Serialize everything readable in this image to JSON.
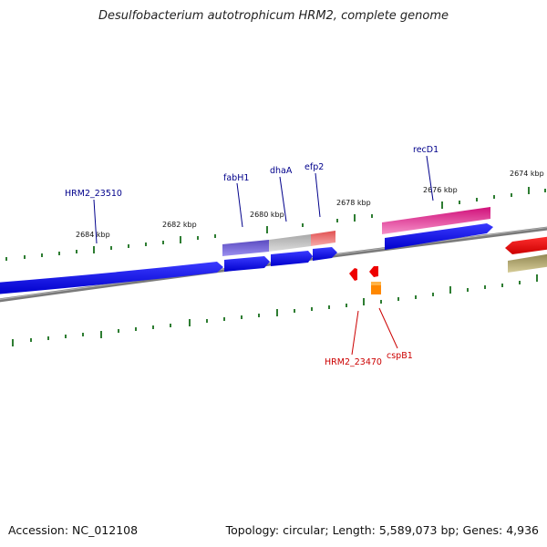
{
  "title": "Desulfobacterium autotrophicum HRM2, complete genome",
  "footer": {
    "accession": "Accession: NC_012108",
    "summary": "Topology: circular; Length: 5,589,073 bp; Genes: 4,936"
  },
  "ruler": {
    "labels": [
      "2684 kbp",
      "2682 kbp",
      "2680 kbp",
      "2678 kbp",
      "2676 kbp",
      "2674 kbp"
    ]
  },
  "gene_labels": [
    {
      "id": "HRM2_23510",
      "text": "HRM2_23510",
      "color": "#00008b"
    },
    {
      "id": "fabH1",
      "text": "fabH1",
      "color": "#00008b"
    },
    {
      "id": "dhaA",
      "text": "dhaA",
      "color": "#00008b"
    },
    {
      "id": "efp2",
      "text": "efp2",
      "color": "#00008b"
    },
    {
      "id": "recD1",
      "text": "recD1",
      "color": "#00008b"
    },
    {
      "id": "HRM2_23470",
      "text": "HRM2_23470",
      "color": "#cc0000"
    },
    {
      "id": "cspB1",
      "text": "cspB1",
      "color": "#cc0000"
    }
  ],
  "colors": {
    "backbone": "#7f7f7f",
    "tick": "#2e7d32",
    "cds_blue": "#0000ee",
    "cog_purple": "#6a5acd",
    "cog_gray": "#b8b8b8",
    "cog_salmon": "#ee6a6a",
    "cog_pink": "#e0218a",
    "cog_olive": "#b5a96a",
    "cds_red": "#ee0000",
    "cds_orange": "#ff8800"
  }
}
